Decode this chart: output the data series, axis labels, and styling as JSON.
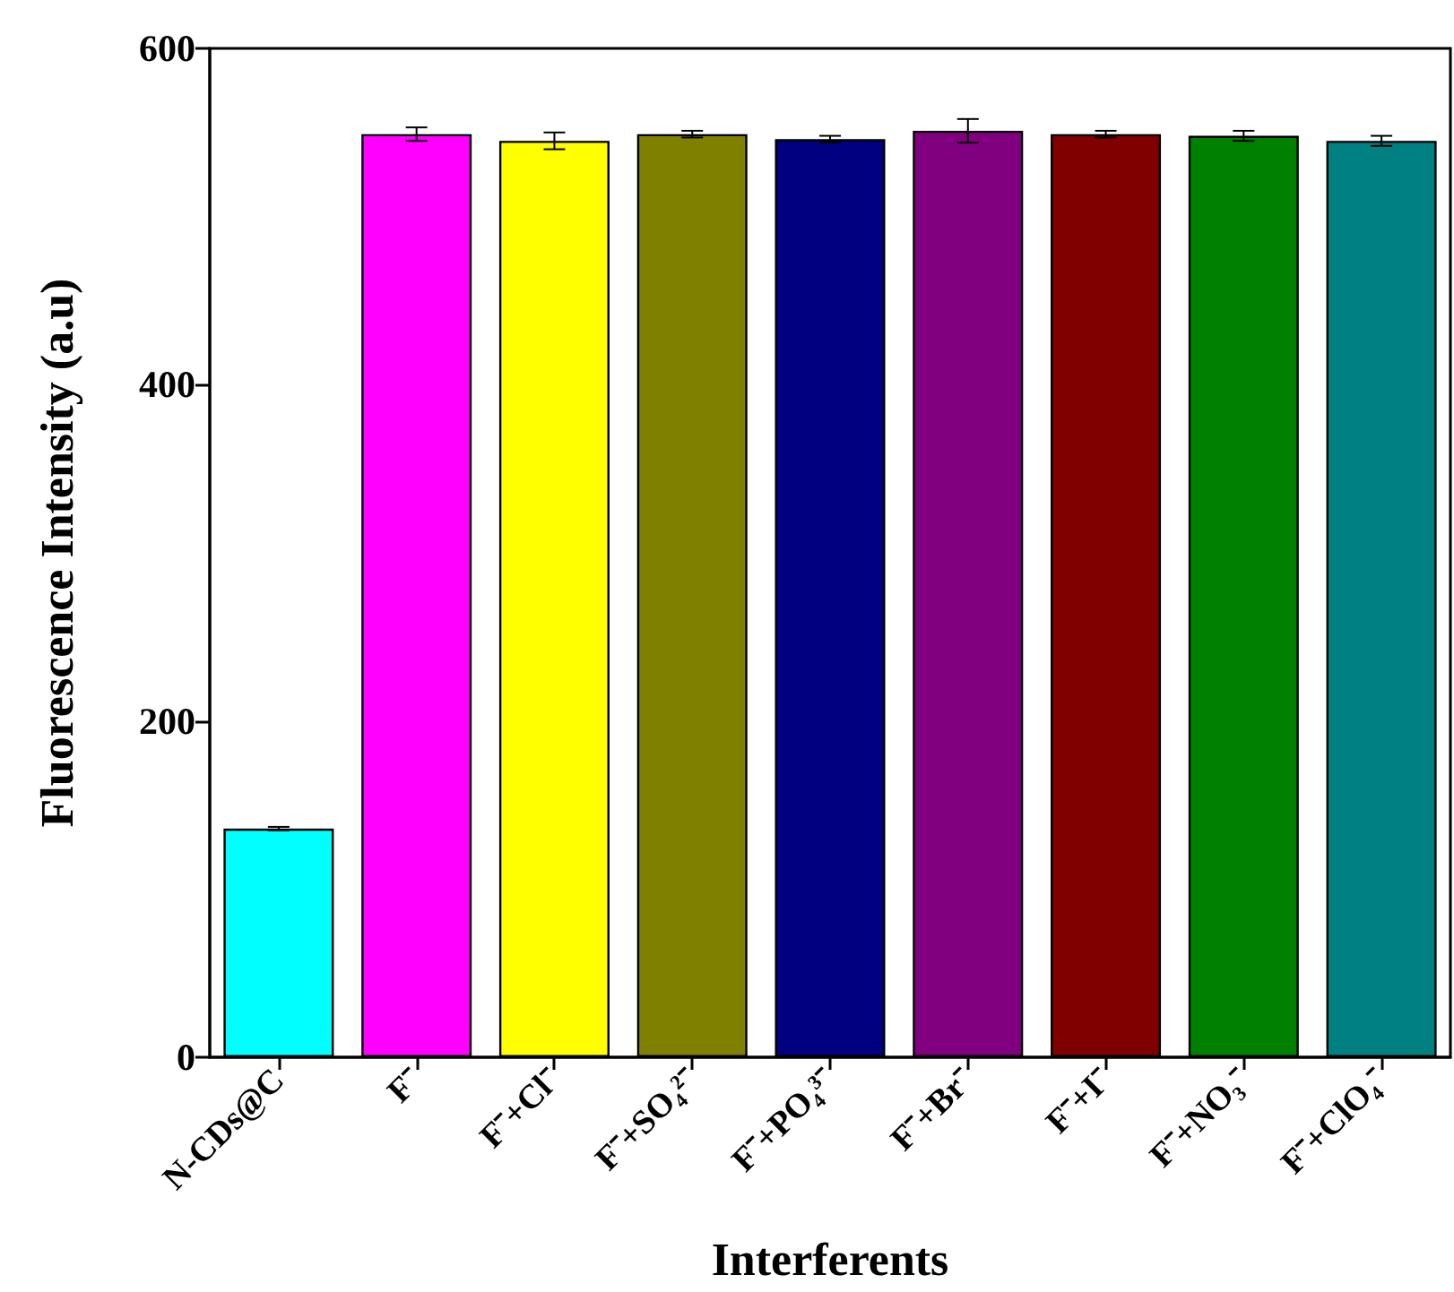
{
  "chart_data": {
    "type": "bar",
    "xlabel": "Interferents",
    "ylabel": "Fluorescence Intensity (a.u)",
    "categories": [
      "N-CDs@C",
      "F⁻",
      "F⁻+Cl⁻",
      "F⁻+SO₄²⁻",
      "F⁻+PO₄³⁻",
      "F⁻+Br⁻",
      "F⁻+I⁻",
      "F⁻+NO₃⁻",
      "F⁻+ClO₄⁻"
    ],
    "values": [
      136,
      549,
      545,
      549,
      546,
      551,
      549,
      548,
      545
    ],
    "errors": [
      1,
      4,
      5,
      2,
      2,
      7,
      2,
      3,
      3
    ],
    "colors": [
      "#00ffff",
      "#ff00ff",
      "#ffff00",
      "#808000",
      "#000080",
      "#800080",
      "#800000",
      "#008000",
      "#008080"
    ],
    "ylim": [
      0,
      600
    ],
    "yticks": [
      0,
      200,
      400,
      600
    ]
  }
}
